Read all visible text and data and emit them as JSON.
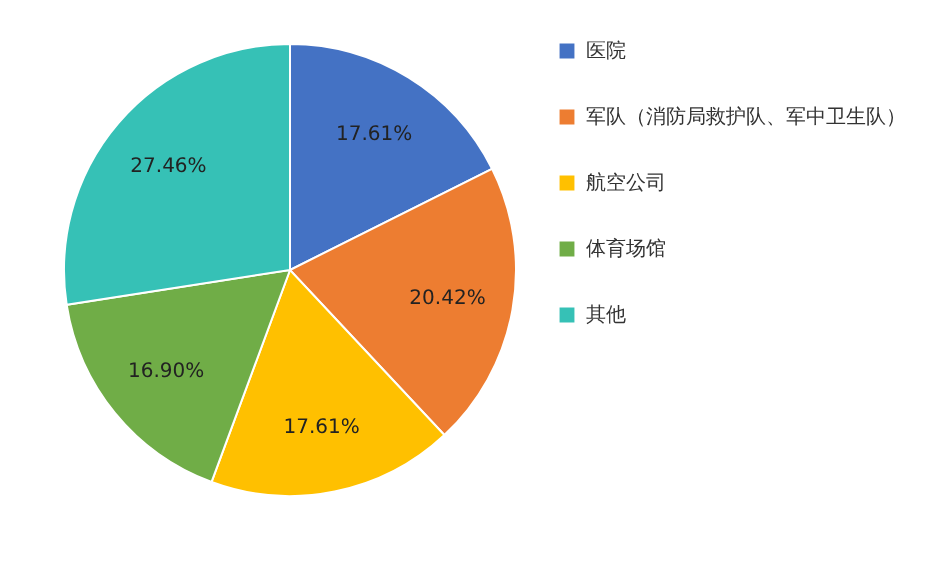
{
  "chart_data": {
    "type": "pie",
    "categories": [
      "医院",
      "军队（消防局救护队、军中卫生队）",
      "航空公司",
      "体育场馆",
      "其他"
    ],
    "values": [
      17.61,
      20.42,
      17.61,
      16.9,
      27.46
    ],
    "colors": [
      "#4472c4",
      "#ed7d31",
      "#ffc000",
      "#70ad47",
      "#36c1b6"
    ],
    "value_labels": [
      "17.61%",
      "20.42%",
      "17.61%",
      "16.90%",
      "27.46%"
    ],
    "legend": "right"
  }
}
